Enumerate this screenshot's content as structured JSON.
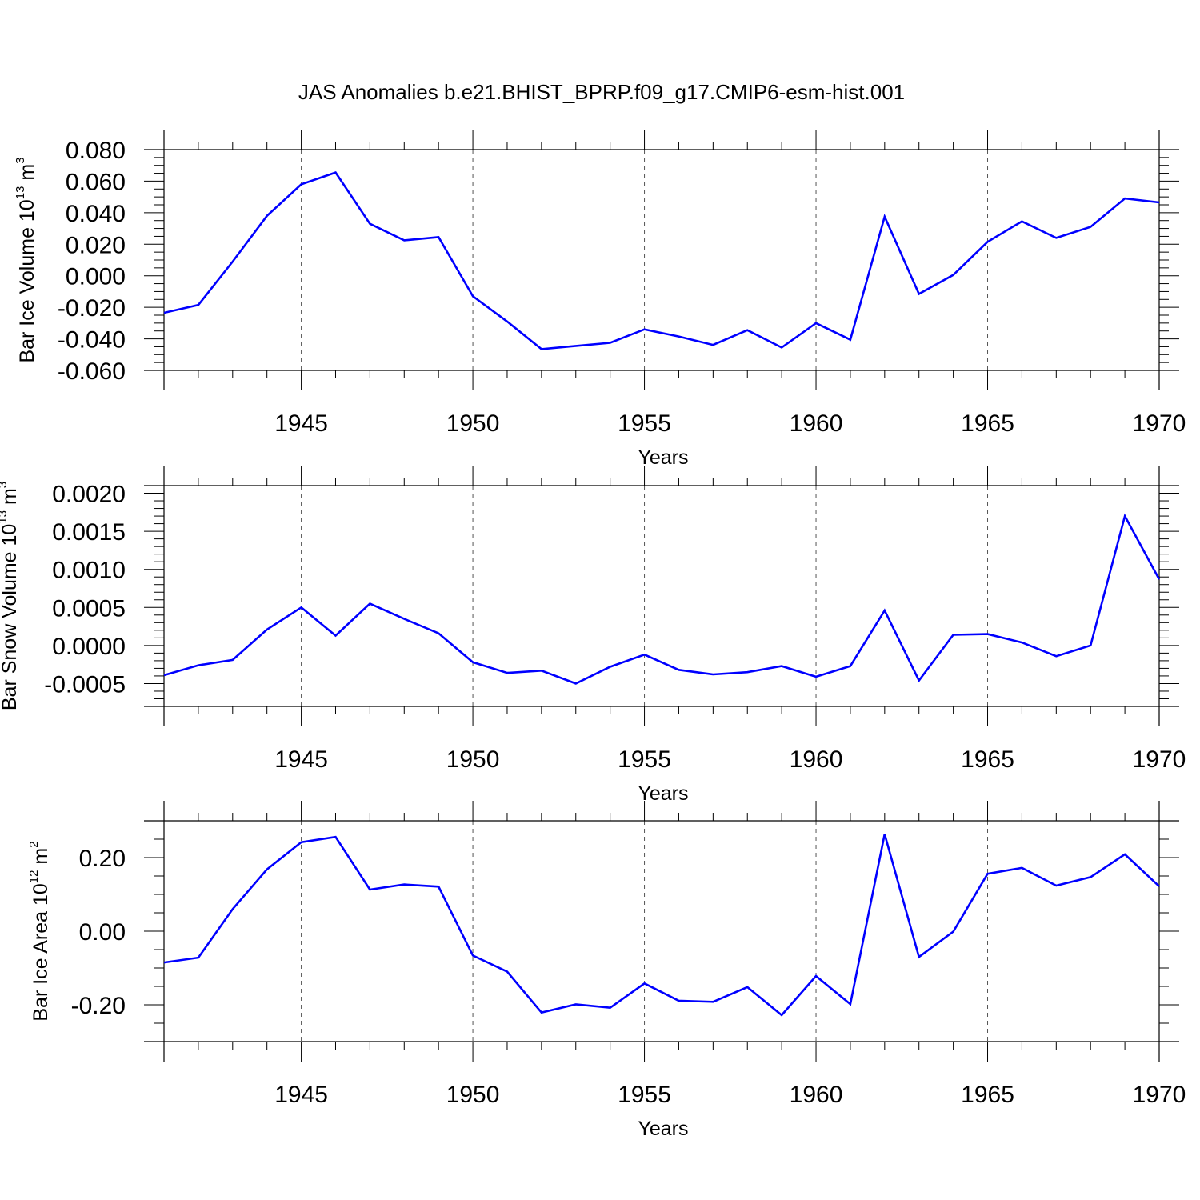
{
  "title": "JAS Anomalies b.e21.BHIST_BPRP.f09_g17.CMIP6-esm-hist.001",
  "line_color": "#0000ff",
  "chart_data": [
    {
      "type": "line",
      "ylabel": {
        "main": "Bar Ice Volume 10",
        "sup": "13",
        "tail": " m",
        "unit_sup": "3"
      },
      "xlabel": "Years",
      "xlim": [
        1941,
        1970
      ],
      "ylim": [
        -0.06,
        0.08
      ],
      "x_ticks": [
        1945,
        1950,
        1955,
        1960,
        1965,
        1970
      ],
      "x_tick_labels": [
        "1945",
        "1950",
        "1955",
        "1960",
        "1965",
        "1970"
      ],
      "y_ticks": [
        -0.06,
        -0.04,
        -0.02,
        0.0,
        0.02,
        0.04,
        0.06,
        0.08
      ],
      "y_tick_labels": [
        "-0.060",
        "-0.040",
        "-0.020",
        "0.000",
        "0.020",
        "0.040",
        "0.060",
        "0.080"
      ],
      "y_minor_step": 0.005,
      "x_grid": "dashed",
      "series": [
        {
          "x": [
            1941,
            1942,
            1943,
            1944,
            1945,
            1946,
            1947,
            1948,
            1949,
            1950,
            1951,
            1952,
            1953,
            1954,
            1955,
            1956,
            1957,
            1958,
            1959,
            1960,
            1961,
            1962,
            1963,
            1964,
            1965,
            1966,
            1967,
            1968,
            1969,
            1970
          ],
          "y": [
            -0.0235,
            -0.0185,
            0.009,
            0.038,
            0.058,
            0.0655,
            0.033,
            0.0225,
            0.0245,
            -0.013,
            -0.029,
            -0.0465,
            -0.0445,
            -0.0425,
            -0.034,
            -0.0385,
            -0.0438,
            -0.0345,
            -0.0455,
            -0.03,
            -0.0405,
            0.0375,
            -0.0115,
            0.0005,
            0.0215,
            0.0345,
            0.024,
            0.031,
            0.049,
            0.0465
          ]
        }
      ]
    },
    {
      "type": "line",
      "ylabel": {
        "main": "Bar Snow Volume 10",
        "sup": "13",
        "tail": " m",
        "unit_sup": "3"
      },
      "xlabel": "Years",
      "xlim": [
        1941,
        1970
      ],
      "ylim": [
        -0.0008,
        0.0021
      ],
      "x_ticks": [
        1945,
        1950,
        1955,
        1960,
        1965,
        1970
      ],
      "x_tick_labels": [
        "1945",
        "1950",
        "1955",
        "1960",
        "1965",
        "1970"
      ],
      "y_ticks": [
        -0.0005,
        0.0,
        0.0005,
        0.001,
        0.0015,
        0.002
      ],
      "y_tick_labels": [
        "-0.0005",
        "0.0000",
        "0.0005",
        "0.0010",
        "0.0015",
        "0.0020"
      ],
      "y_minor_step": 0.0001,
      "x_grid": "dashed",
      "series": [
        {
          "x": [
            1941,
            1942,
            1943,
            1944,
            1945,
            1946,
            1947,
            1948,
            1949,
            1950,
            1951,
            1952,
            1953,
            1954,
            1955,
            1956,
            1957,
            1958,
            1959,
            1960,
            1961,
            1962,
            1963,
            1964,
            1965,
            1966,
            1967,
            1968,
            1969,
            1970
          ],
          "y": [
            -0.00039,
            -0.00026,
            -0.00019,
            0.00021,
            0.0005,
            0.00013,
            0.00055,
            0.00035,
            0.00016,
            -0.00022,
            -0.00036,
            -0.00033,
            -0.0005,
            -0.00028,
            -0.00012,
            -0.00032,
            -0.00038,
            -0.00035,
            -0.00027,
            -0.00041,
            -0.00027,
            0.00046,
            -0.00046,
            0.00014,
            0.00015,
            4e-05,
            -0.00014,
            0.0,
            0.0017,
            0.00087
          ]
        }
      ]
    },
    {
      "type": "line",
      "ylabel": {
        "main": "Bar Ice Area 10",
        "sup": "12",
        "tail": " m",
        "unit_sup": "2"
      },
      "xlabel": "Years",
      "xlim": [
        1941,
        1970
      ],
      "ylim": [
        -0.3,
        0.3
      ],
      "x_ticks": [
        1945,
        1950,
        1955,
        1960,
        1965,
        1970
      ],
      "x_tick_labels": [
        "1945",
        "1950",
        "1955",
        "1960",
        "1965",
        "1970"
      ],
      "y_ticks": [
        -0.2,
        0.0,
        0.2
      ],
      "y_tick_labels": [
        "-0.20",
        "0.00",
        "0.20"
      ],
      "y_minor_step": 0.05,
      "x_grid": "dashed",
      "series": [
        {
          "x": [
            1941,
            1942,
            1943,
            1944,
            1945,
            1946,
            1947,
            1948,
            1949,
            1950,
            1951,
            1952,
            1953,
            1954,
            1955,
            1956,
            1957,
            1958,
            1959,
            1960,
            1961,
            1962,
            1963,
            1964,
            1965,
            1966,
            1967,
            1968,
            1969,
            1970
          ],
          "y": [
            -0.085,
            -0.072,
            0.06,
            0.168,
            0.242,
            0.256,
            0.113,
            0.127,
            0.121,
            -0.066,
            -0.11,
            -0.221,
            -0.199,
            -0.208,
            -0.142,
            -0.189,
            -0.192,
            -0.152,
            -0.228,
            -0.122,
            -0.198,
            0.264,
            -0.07,
            -0.001,
            0.156,
            0.172,
            0.124,
            0.147,
            0.209,
            0.122
          ]
        }
      ]
    }
  ]
}
